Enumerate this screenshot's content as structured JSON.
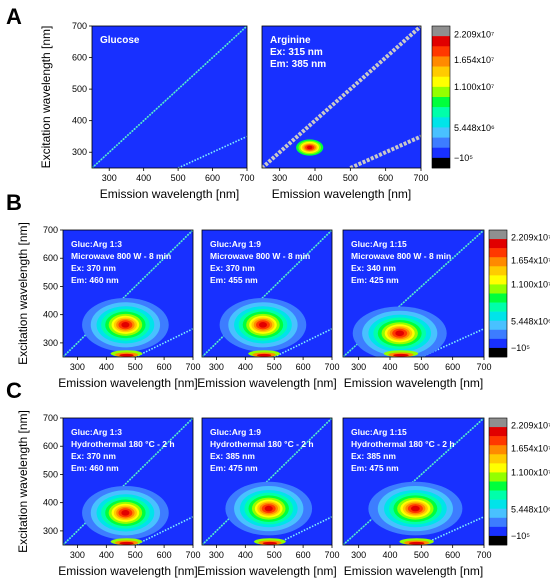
{
  "panels": [
    {
      "letter": "A"
    },
    {
      "letter": "B"
    },
    {
      "letter": "C"
    }
  ],
  "axes": {
    "xlabel": "Emission wavelength [nm]",
    "ylabel": "Excitation wavelength [nm]"
  },
  "colorbar": {
    "labels": [
      "2.209x10⁷",
      "1.654x10⁷",
      "1.100x10⁷",
      "5.448x10⁶",
      "−10⁵"
    ]
  },
  "chart_data": [
    {
      "type": "heatmap",
      "row": "A",
      "title": "Glucose",
      "lines": [
        "Glucose"
      ],
      "xlim": [
        250,
        700
      ],
      "ylim": [
        250,
        700
      ],
      "xticks": [
        300,
        400,
        500,
        600,
        700
      ],
      "yticks": [
        300,
        400,
        500,
        600,
        700
      ],
      "peak": null,
      "scatter": "weak"
    },
    {
      "type": "heatmap",
      "row": "A",
      "title": "Arginine",
      "lines": [
        "Arginine",
        "Ex: 315 nm",
        "Em: 385 nm"
      ],
      "xlim": [
        250,
        700
      ],
      "ylim": [
        250,
        700
      ],
      "xticks": [
        300,
        400,
        500,
        600,
        700
      ],
      "peak": {
        "em": 385,
        "ex": 315,
        "level": "strong"
      },
      "scatter": "strong"
    },
    {
      "type": "heatmap",
      "row": "B",
      "title": "Gluc:Arg 1:3",
      "lines": [
        "Gluc:Arg 1:3",
        "Microwave 800 W - 8 min",
        "Ex: 370 nm",
        "Em: 460 nm"
      ],
      "xlim": [
        250,
        700
      ],
      "ylim": [
        250,
        700
      ],
      "xticks": [
        300,
        400,
        500,
        600,
        700
      ],
      "yticks": [
        300,
        400,
        500,
        600,
        700
      ],
      "peak": {
        "em": 460,
        "ex": 370,
        "level": "strong"
      },
      "scatter": "medium"
    },
    {
      "type": "heatmap",
      "row": "B",
      "title": "Gluc:Arg 1:9",
      "lines": [
        "Gluc:Arg 1:9",
        "Microwave 800 W - 8 min",
        "Ex: 370 nm",
        "Em: 455 nm"
      ],
      "xlim": [
        250,
        700
      ],
      "ylim": [
        250,
        700
      ],
      "xticks": [
        300,
        400,
        500,
        600,
        700
      ],
      "peak": {
        "em": 455,
        "ex": 370,
        "level": "strong"
      },
      "scatter": "medium"
    },
    {
      "type": "heatmap",
      "row": "B",
      "title": "Gluc:Arg 1:15",
      "lines": [
        "Gluc:Arg 1:15",
        "Microwave 800 W - 8 min",
        "Ex: 340 nm",
        "Em: 425 nm"
      ],
      "xlim": [
        250,
        700
      ],
      "ylim": [
        250,
        700
      ],
      "xticks": [
        300,
        400,
        500,
        600,
        700
      ],
      "peak": {
        "em": 425,
        "ex": 340,
        "level": "strong"
      },
      "scatter": "medium"
    },
    {
      "type": "heatmap",
      "row": "C",
      "title": "Gluc:Arg 1:3",
      "lines": [
        "Gluc:Arg 1:3",
        "Hydrothermal 180 °C - 2 h",
        "Ex: 370 nm",
        "Em: 460 nm"
      ],
      "xlim": [
        250,
        700
      ],
      "ylim": [
        250,
        700
      ],
      "xticks": [
        300,
        400,
        500,
        600,
        700
      ],
      "yticks": [
        300,
        400,
        500,
        600,
        700
      ],
      "peak": {
        "em": 460,
        "ex": 370,
        "level": "strong"
      },
      "scatter": "medium"
    },
    {
      "type": "heatmap",
      "row": "C",
      "title": "Gluc:Arg 1:9",
      "lines": [
        "Gluc:Arg 1:9",
        "Hydrothermal 180 °C - 2 h",
        "Ex: 385 nm",
        "Em: 475 nm"
      ],
      "xlim": [
        250,
        700
      ],
      "ylim": [
        250,
        700
      ],
      "xticks": [
        300,
        400,
        500,
        600,
        700
      ],
      "peak": {
        "em": 475,
        "ex": 385,
        "level": "strong"
      },
      "scatter": "medium"
    },
    {
      "type": "heatmap",
      "row": "C",
      "title": "Gluc:Arg 1:15",
      "lines": [
        "Gluc:Arg 1:15",
        "Hydrothermal 180 °C - 2 h",
        "Ex: 385 nm",
        "Em: 475 nm"
      ],
      "xlim": [
        250,
        700
      ],
      "ylim": [
        250,
        700
      ],
      "xticks": [
        300,
        400,
        500,
        600,
        700
      ],
      "peak": {
        "em": 475,
        "ex": 385,
        "level": "strong"
      },
      "scatter": "medium"
    }
  ]
}
